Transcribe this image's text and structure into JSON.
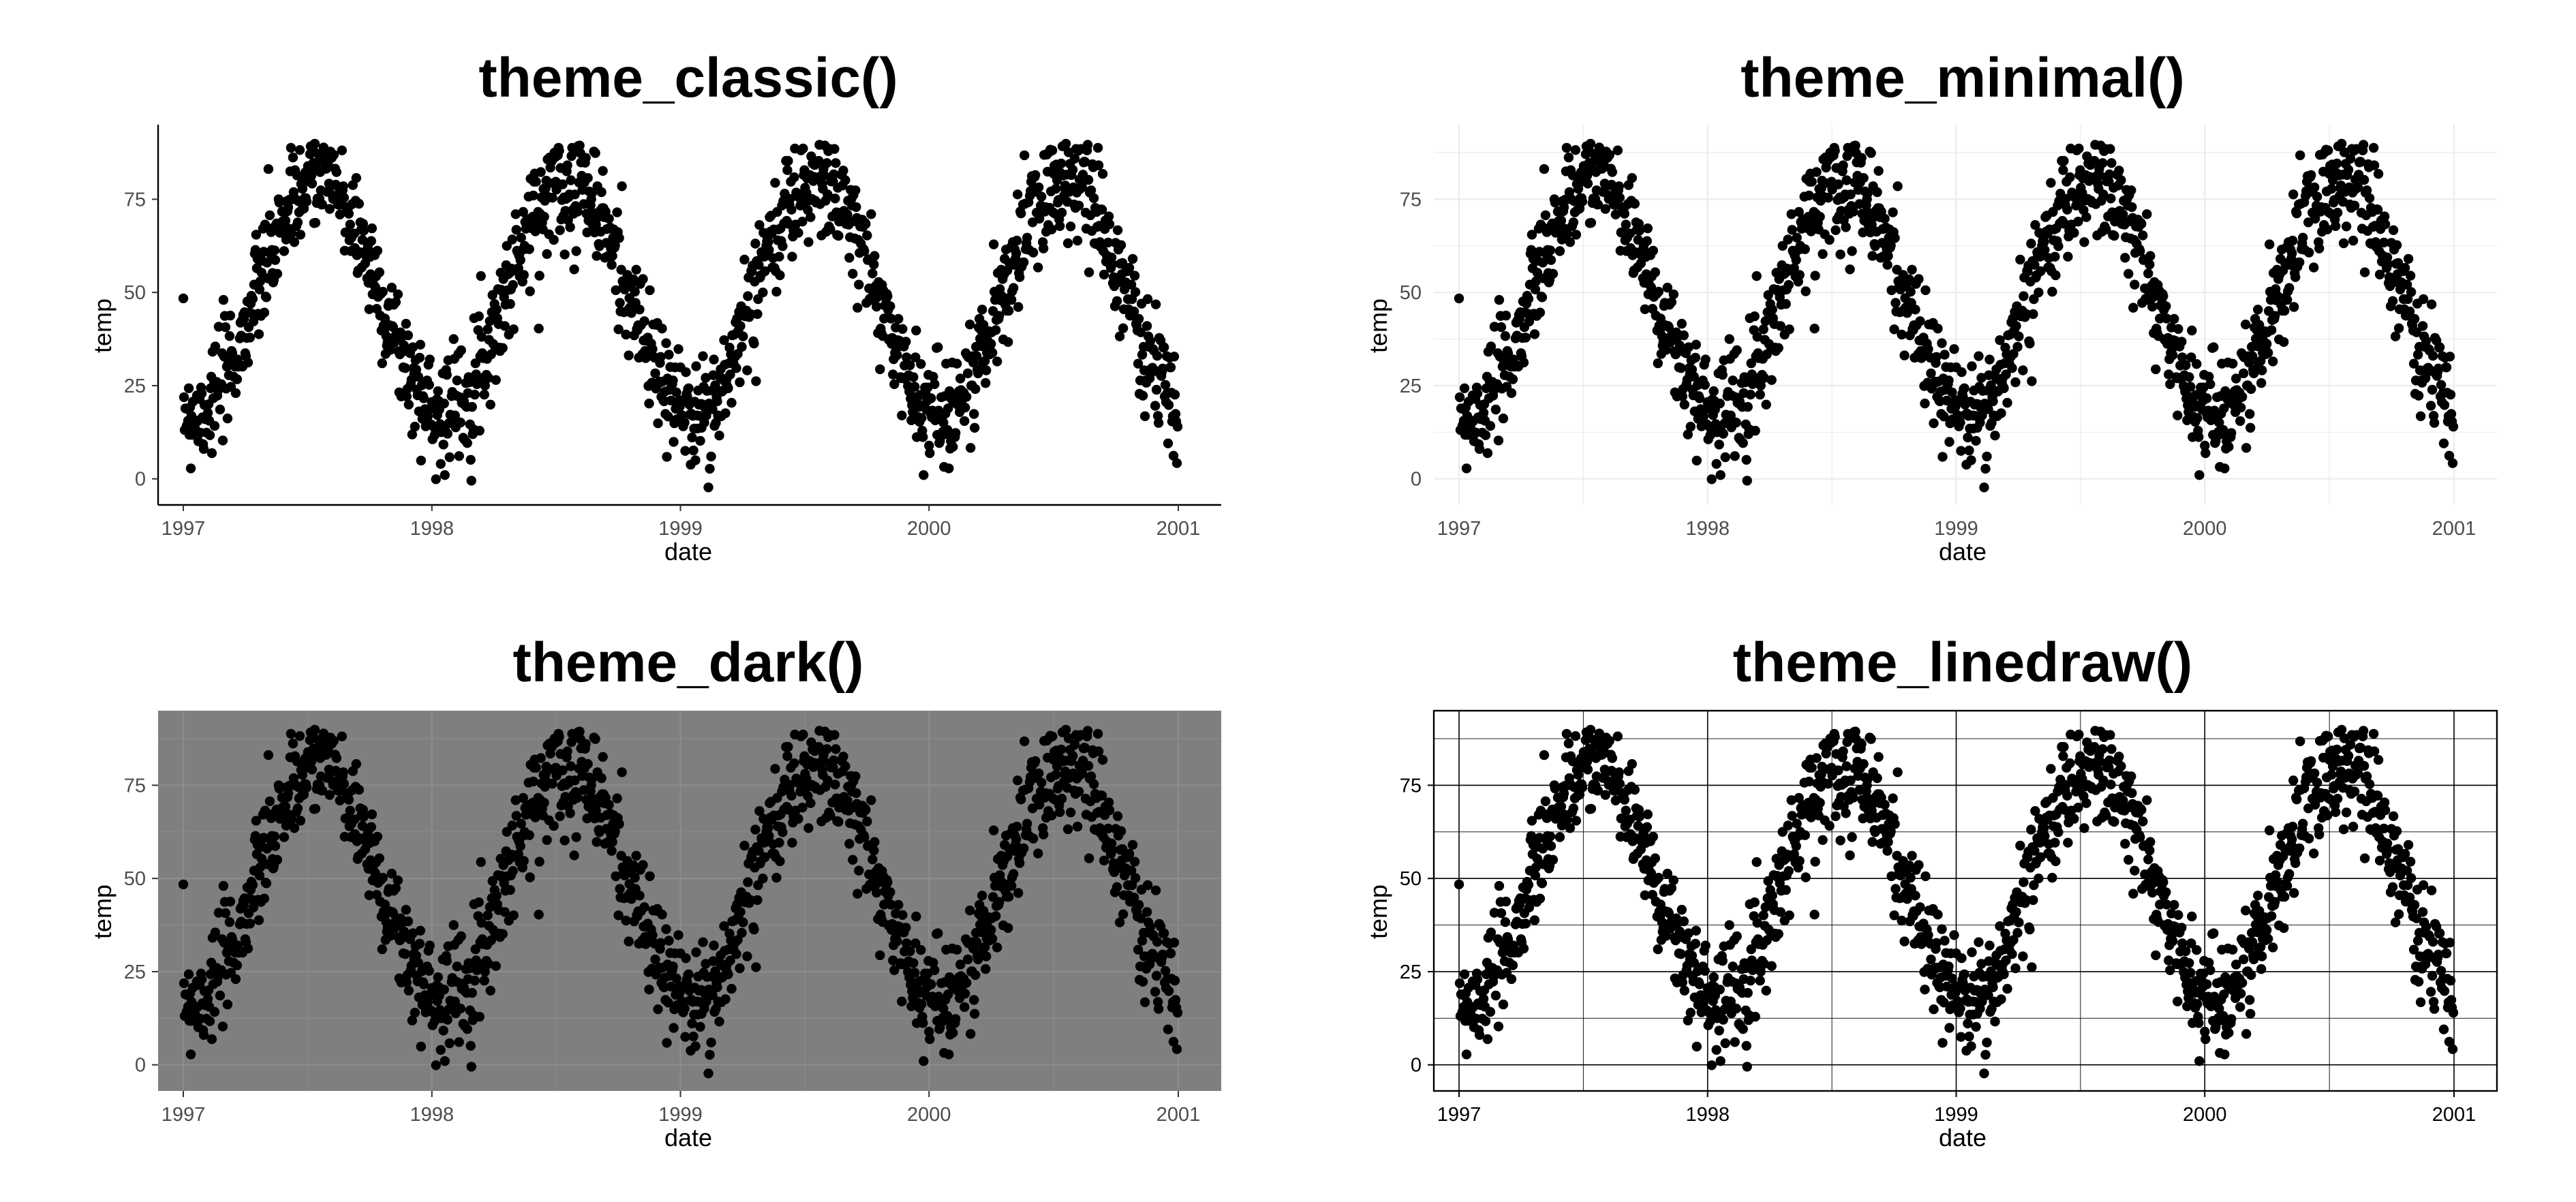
{
  "chart_data": [
    {
      "type": "scatter",
      "title": "theme_classic()",
      "theme": "classic",
      "xlabel": "date",
      "ylabel": "temp",
      "x_ticks": [
        "1997",
        "1998",
        "1999",
        "2000",
        "2001"
      ],
      "y_ticks": [
        0,
        25,
        50,
        75
      ],
      "xlim": [
        "1996-11-25",
        "2001-03-05"
      ],
      "ylim": [
        -7,
        95
      ],
      "grid": false,
      "colors": {
        "points": "#000000",
        "panel_background": "#ffffff",
        "axis_line": "#000000"
      }
    },
    {
      "type": "scatter",
      "title": "theme_minimal()",
      "theme": "minimal",
      "xlabel": "date",
      "ylabel": "temp",
      "x_ticks": [
        "1997",
        "1998",
        "1999",
        "2000",
        "2001"
      ],
      "y_ticks": [
        0,
        25,
        50,
        75
      ],
      "xlim": [
        "1996-11-25",
        "2001-03-05"
      ],
      "ylim": [
        -7,
        95
      ],
      "grid": true,
      "colors": {
        "points": "#000000",
        "panel_background": "#ffffff",
        "grid": "#ebebeb"
      }
    },
    {
      "type": "scatter",
      "title": "theme_dark()",
      "theme": "dark",
      "xlabel": "date",
      "ylabel": "temp",
      "x_ticks": [
        "1997",
        "1998",
        "1999",
        "2000",
        "2001"
      ],
      "y_ticks": [
        0,
        25,
        50,
        75
      ],
      "xlim": [
        "1996-11-25",
        "2001-03-05"
      ],
      "ylim": [
        -7,
        95
      ],
      "grid": true,
      "colors": {
        "points": "#000000",
        "panel_background": "#7f7f7f",
        "grid": "#8c8c8c"
      }
    },
    {
      "type": "scatter",
      "title": "theme_linedraw()",
      "theme": "linedraw",
      "xlabel": "date",
      "ylabel": "temp",
      "x_ticks": [
        "1997",
        "1998",
        "1999",
        "2000",
        "2001"
      ],
      "y_ticks": [
        0,
        25,
        50,
        75
      ],
      "xlim": [
        "1996-11-25",
        "2001-03-05"
      ],
      "ylim": [
        -7,
        95
      ],
      "grid": true,
      "colors": {
        "points": "#000000",
        "panel_background": "#ffffff",
        "grid": "#000000",
        "border": "#000000"
      }
    }
  ],
  "series": {
    "date_range": [
      "1997-01-01",
      "2000-12-31"
    ],
    "seasonal_profile": {
      "annual_peak_month": "July",
      "annual_low_month": "January",
      "approx_max": 90,
      "approx_min": -3
    },
    "points": []
  }
}
